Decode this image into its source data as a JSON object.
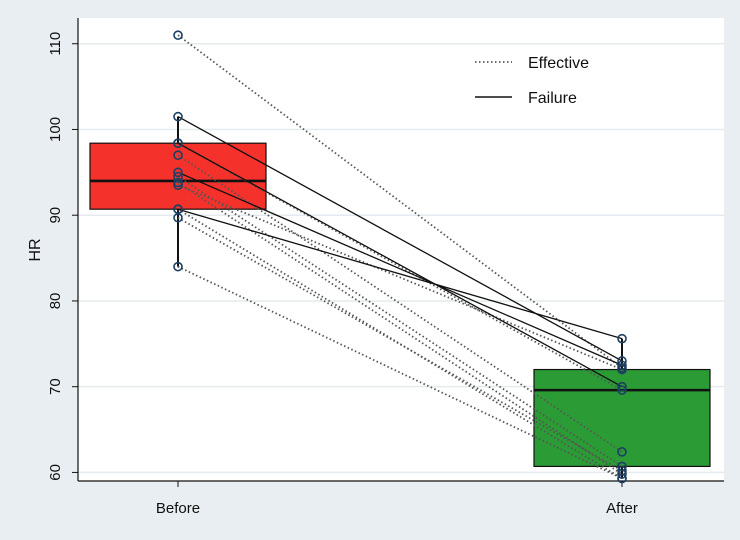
{
  "chart_data": {
    "type": "box",
    "title": "",
    "xlabel": "",
    "ylabel": "HR",
    "categories": [
      "Before",
      "After"
    ],
    "ylim": [
      59,
      113
    ],
    "yticks": [
      60,
      70,
      80,
      90,
      100,
      110
    ],
    "grid": true,
    "legend_position": "top-right",
    "legend": [
      {
        "label": "Effective",
        "style": "dotted"
      },
      {
        "label": "Failure",
        "style": "solid"
      }
    ],
    "boxes": [
      {
        "category": "Before",
        "q1": 90.7,
        "median": 94.0,
        "q3": 98.4,
        "whisker_low": 84.0,
        "whisker_high": 101.5,
        "color": "#f5312b"
      },
      {
        "category": "After",
        "q1": 60.7,
        "median": 69.6,
        "q3": 72.0,
        "whisker_low": 59.3,
        "whisker_high": 75.6,
        "color": "#2b9b35"
      }
    ],
    "series": [
      {
        "name": "Effective",
        "values": [
          [
            111.0,
            72.2
          ],
          [
            97.0,
            62.4
          ],
          [
            94.5,
            60.7
          ],
          [
            93.8,
            59.8
          ],
          [
            93.5,
            72.0
          ],
          [
            90.7,
            59.3
          ],
          [
            89.7,
            60.2
          ],
          [
            84.0,
            59.3
          ],
          [
            98.4,
            69.6
          ]
        ]
      },
      {
        "name": "Failure",
        "values": [
          [
            101.5,
            73.0
          ],
          [
            98.4,
            70.0
          ],
          [
            95.0,
            72.5
          ],
          [
            90.7,
            75.6
          ]
        ]
      }
    ],
    "colors": {
      "before_box": "#f5312b",
      "after_box": "#2b9b35",
      "marker": "#1c3f63",
      "background": "#e8eef2",
      "plot": "#ffffff",
      "grid": "#e4eaee"
    }
  }
}
